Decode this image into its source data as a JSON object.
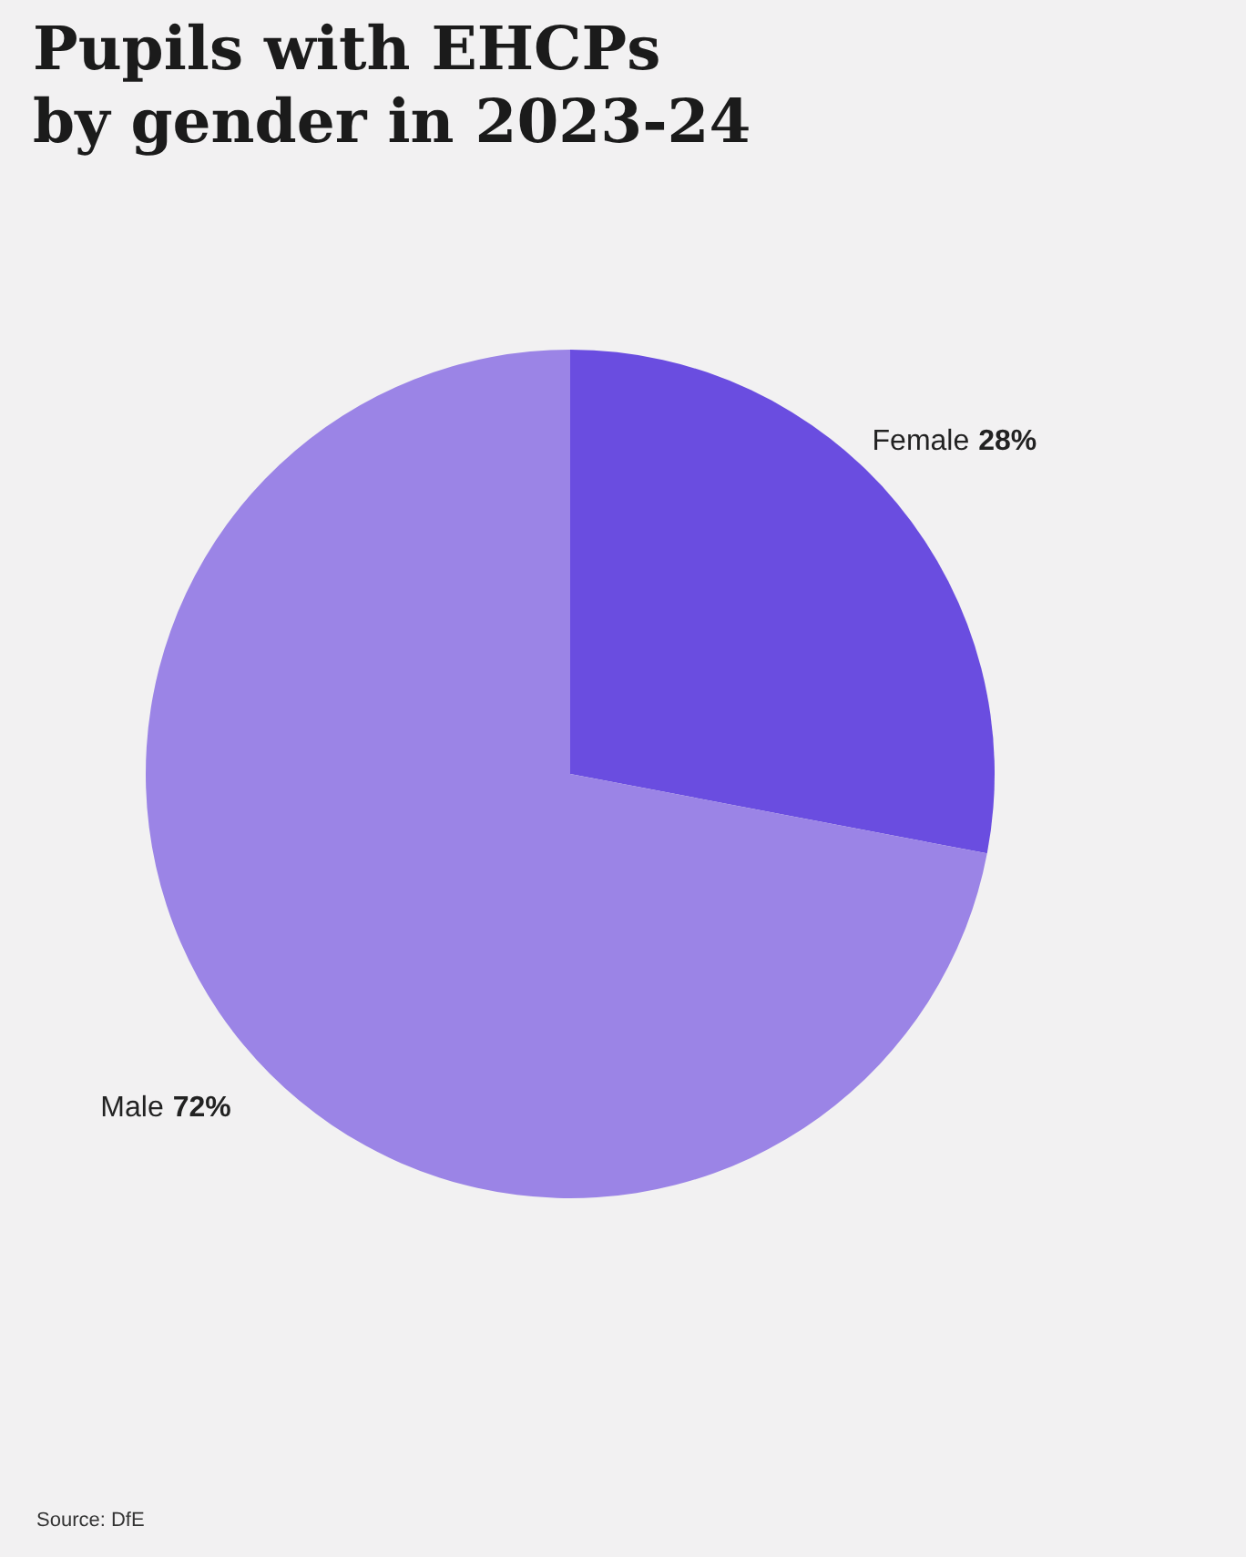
{
  "chart_data": {
    "type": "pie",
    "title": "Pupils with EHCPs\nby gender in 2023-24",
    "categories": [
      "Female",
      "Male"
    ],
    "values": [
      28,
      72
    ],
    "value_labels": [
      "28%",
      "72%"
    ],
    "colors": [
      "#6a4de0",
      "#9b84e6"
    ],
    "annotations": [
      "Source: DfE"
    ]
  }
}
